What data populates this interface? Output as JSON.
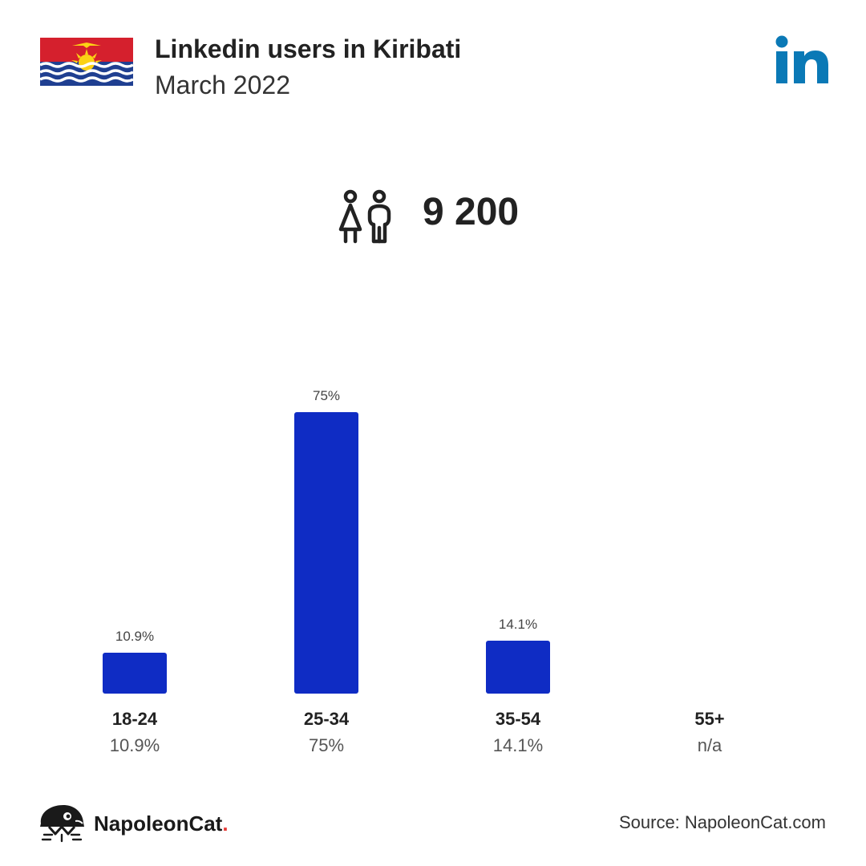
{
  "header": {
    "title": "Linkedin users in Kiribati",
    "subtitle": "March 2022",
    "flag_icon": "kiribati-flag-icon",
    "platform_icon": "linkedin-logo-icon"
  },
  "total": {
    "icon": "users-icon",
    "value": "9 200"
  },
  "colors": {
    "bar": "#0f2cc4",
    "linkedin": "#0a79b6",
    "flag_red": "#d5202d",
    "flag_blue": "#1f3f91",
    "flag_gold": "#fbd215",
    "brand_dot": "#e53935"
  },
  "chart_data": {
    "type": "bar",
    "categories": [
      "18-24",
      "25-34",
      "35-54",
      "55+"
    ],
    "values": [
      10.9,
      75,
      14.1,
      null
    ],
    "value_labels": [
      "10.9%",
      "75%",
      "14.1%",
      ""
    ],
    "category_sublabels": [
      "10.9%",
      "75%",
      "14.1%",
      "n/a"
    ],
    "unit": "%",
    "ylim": [
      0,
      75
    ],
    "grid": false
  },
  "footer": {
    "brand_name": "NapoleonCat",
    "brand_dot": ".",
    "brand_icon": "napoleoncat-logo-icon",
    "source": "Source: NapoleonCat.com"
  }
}
